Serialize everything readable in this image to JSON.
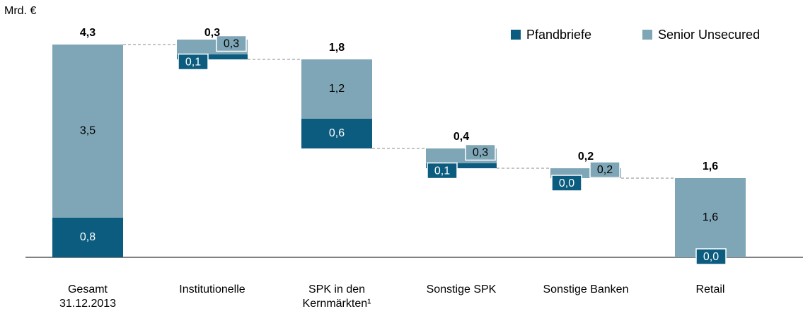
{
  "chart_data": {
    "type": "waterfall",
    "unit_label": "Mrd. €",
    "categories": [
      [
        "Gesamt",
        "31.12.2013"
      ],
      [
        "Institutionelle"
      ],
      [
        "SPK in den",
        "Kernmärkten¹"
      ],
      [
        "Sonstige SPK"
      ],
      [
        "Sonstige Banken"
      ],
      [
        "Retail"
      ]
    ],
    "totals": [
      4.3,
      0.3,
      1.8,
      0.4,
      0.2,
      1.6
    ],
    "total_labels": [
      "4,3",
      "0,3",
      "1,8",
      "0,4",
      "0,2",
      "1,6"
    ],
    "series": [
      {
        "name": "Pfandbriefe",
        "color": "#0b5c7e",
        "values": [
          0.8,
          0.1,
          0.6,
          0.1,
          0.0,
          0.0
        ],
        "value_labels": [
          "0,8",
          "0,1",
          "0,6",
          "0,1",
          "0,0",
          "0,0"
        ]
      },
      {
        "name": "Senior Unsecured",
        "color": "#7fa6b6",
        "values": [
          3.5,
          0.3,
          1.2,
          0.3,
          0.2,
          1.6
        ],
        "value_labels": [
          "3,5",
          "0,3",
          "1,2",
          "0,3",
          "0,2",
          "1,6"
        ]
      }
    ],
    "legend": "top-right"
  }
}
